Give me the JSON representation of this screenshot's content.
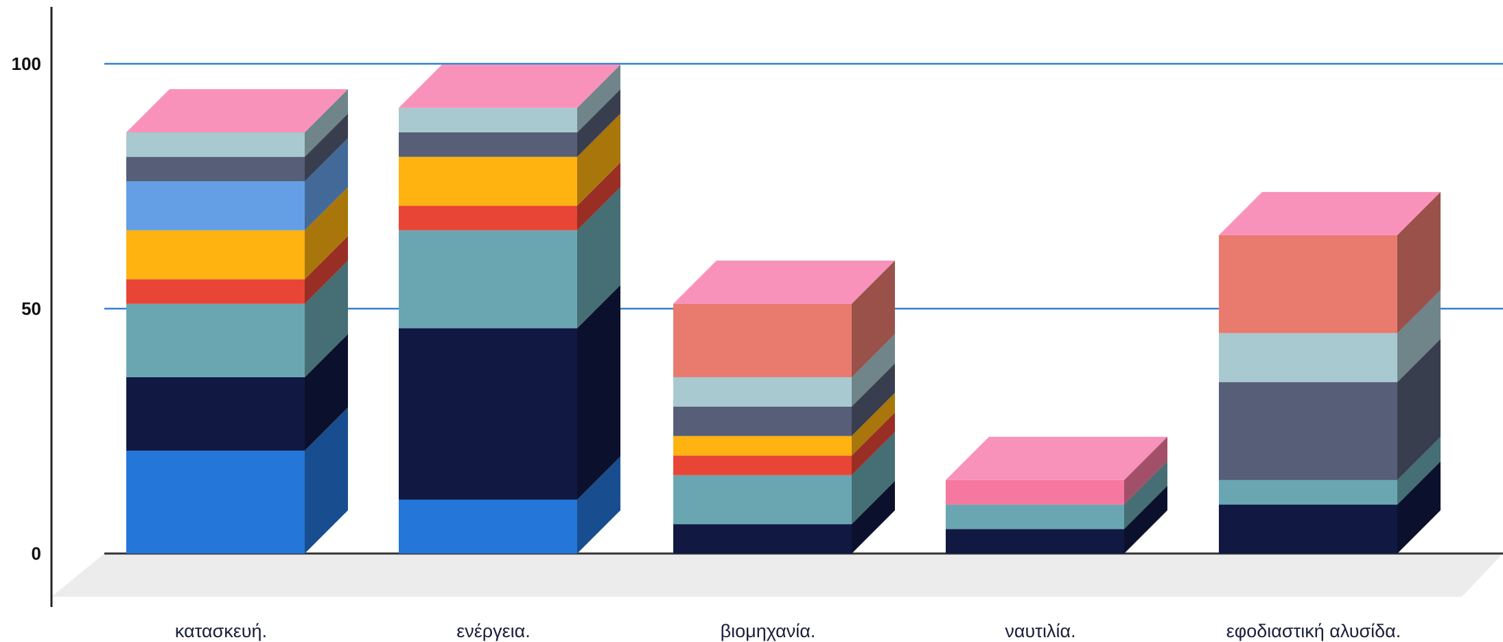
{
  "chart_data": {
    "type": "bar",
    "stacked": true,
    "three_d": true,
    "categories": [
      "κατασκευή.",
      "ενέργεια.",
      "βιομηχανία.",
      "ναυτιλία.",
      "εφοδιαστική αλυσίδα."
    ],
    "y_ticks": [
      0,
      50,
      100
    ],
    "ylim": [
      0,
      105
    ],
    "grid": true,
    "series": [
      {
        "color": "#2476d9",
        "values": [
          21,
          11,
          0,
          0,
          0
        ]
      },
      {
        "color": "#111942",
        "values": [
          15,
          35,
          6,
          5,
          10
        ]
      },
      {
        "color": "#6aa6b2",
        "values": [
          15,
          20,
          10,
          5,
          5
        ]
      },
      {
        "color": "#e84536",
        "values": [
          5,
          5,
          4,
          0,
          0
        ]
      },
      {
        "color": "#feb311",
        "values": [
          10,
          10,
          4,
          0,
          0
        ]
      },
      {
        "color": "#649fe6",
        "values": [
          10,
          0,
          0,
          0,
          0
        ]
      },
      {
        "color": "#565e78",
        "values": [
          5,
          5,
          6,
          0,
          20
        ]
      },
      {
        "color": "#a8c9cf",
        "values": [
          5,
          5,
          6,
          0,
          10
        ]
      },
      {
        "color": "#f678a0",
        "values": [
          0,
          0,
          0,
          5,
          0
        ]
      },
      {
        "color": "#e87b6e",
        "values": [
          0,
          0,
          15,
          0,
          20
        ]
      }
    ],
    "top_color": "#f992ba",
    "gridline_color": "#2f7fd4",
    "floor_color": "#ececec"
  }
}
